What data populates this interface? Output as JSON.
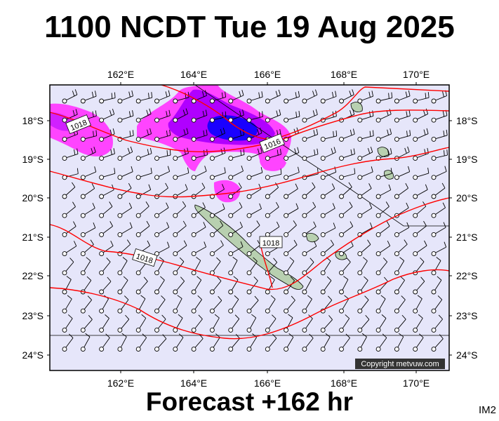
{
  "title": "1100 NCDT Tue 19 Aug 2025",
  "footer": "Forecast +162 hr",
  "corner_label": "IM2",
  "copyright": "Copyright metvuw.com",
  "lon_labels": [
    "162°E",
    "164°E",
    "166°E",
    "168°E",
    "170°E"
  ],
  "lat_labels": [
    "18°S",
    "19°S",
    "20°S",
    "21°S",
    "22°S",
    "23°S",
    "24°S"
  ],
  "isobar_labels": [
    "1018",
    "1016",
    "1018",
    "1018"
  ],
  "colors": {
    "ocean": "#e6e6fa",
    "isobar": "#ff0000",
    "land": "#b8d0b0",
    "rain_light": "#ff44ff",
    "rain_mid": "#b000ff",
    "rain_heavy": "#1a00ff"
  }
}
